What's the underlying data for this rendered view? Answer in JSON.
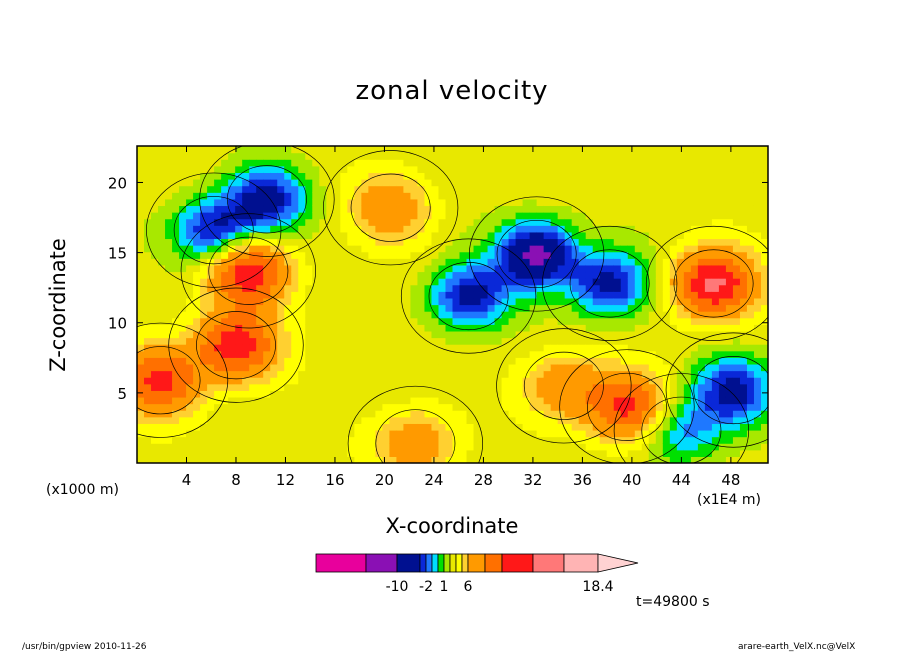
{
  "chart_data": {
    "type": "heatmap",
    "title": "zonal velocity",
    "xlabel": "X-coordinate",
    "ylabel": "Z-coordinate",
    "x_unit_left": "(x1000 m)",
    "x_unit_right": "(x1E4 m)",
    "x_ticks": [
      4,
      8,
      12,
      16,
      20,
      24,
      28,
      32,
      36,
      40,
      44,
      48
    ],
    "y_ticks": [
      5,
      10,
      15,
      20
    ],
    "xlim": [
      0,
      51
    ],
    "ylim": [
      0,
      22.6
    ],
    "time_label": "t=49800 s",
    "colorbar": {
      "tick_labels": [
        "-10",
        "-2",
        "1",
        "6",
        "18.4"
      ],
      "tick_values": [
        -10,
        -2,
        1,
        6,
        18.4
      ],
      "colors": [
        "#e8009c",
        "#8a10b4",
        "#001090",
        "#0a28d8",
        "#1e78ff",
        "#00dcff",
        "#00e000",
        "#a8e800",
        "#e8e800",
        "#ffff00",
        "#ffd030",
        "#ff9a00",
        "#ff7000",
        "#ff1818",
        "#ff7878",
        "#ffb4b4",
        "#ffd2d2"
      ]
    },
    "contour_features": [
      {
        "x": 6.2,
        "z": 16.6,
        "level": -6
      },
      {
        "x": 10.5,
        "z": 18.8,
        "level": -6
      },
      {
        "x": 32.3,
        "z": 14.9,
        "level": -8
      },
      {
        "x": 38.2,
        "z": 12.8,
        "level": -6
      },
      {
        "x": 26.8,
        "z": 11.9,
        "level": -6
      },
      {
        "x": 48.2,
        "z": 5.2,
        "level": -6
      },
      {
        "x": 44.0,
        "z": 2.3,
        "level": -4
      },
      {
        "x": 8.0,
        "z": 8.4,
        "level": 8
      },
      {
        "x": 9.0,
        "z": 13.7,
        "level": 8
      },
      {
        "x": 1.9,
        "z": 5.9,
        "level": 7
      },
      {
        "x": 46.6,
        "z": 12.8,
        "level": 9
      },
      {
        "x": 39.6,
        "z": 4.0,
        "level": 7
      },
      {
        "x": 20.5,
        "z": 18.2,
        "level": 4
      },
      {
        "x": 22.5,
        "z": 1.4,
        "level": 4
      },
      {
        "x": 34.5,
        "z": 5.5,
        "level": 4
      }
    ]
  },
  "footer": {
    "left": "/usr/bin/gpview   2010-11-26",
    "right": "arare-earth_VelX.nc@VelX"
  }
}
